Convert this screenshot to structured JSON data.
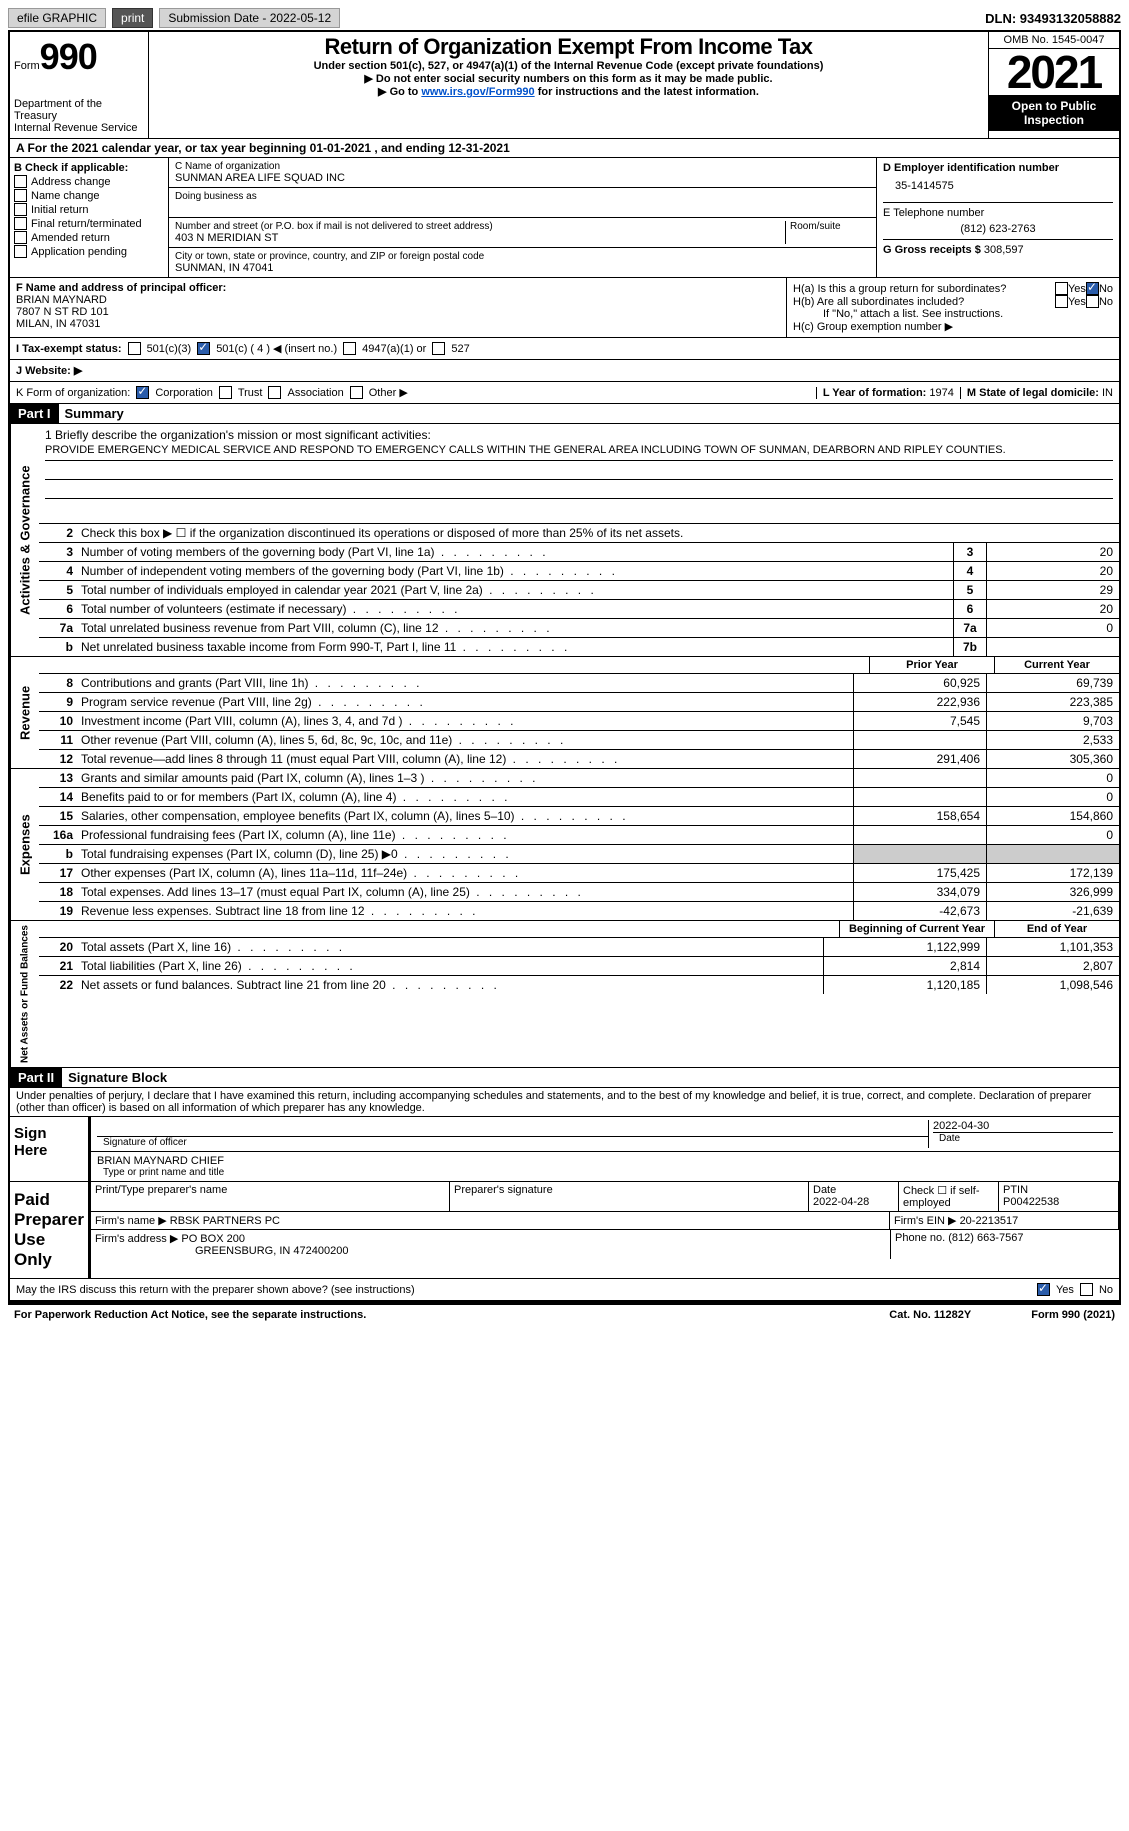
{
  "topbar": {
    "efile": "efile GRAPHIC",
    "print": "print",
    "submission": "Submission Date - 2022-05-12",
    "dln": "DLN: 93493132058882"
  },
  "header": {
    "form_label": "Form",
    "form_num": "990",
    "title": "Return of Organization Exempt From Income Tax",
    "subtitle": "Under section 501(c), 527, or 4947(a)(1) of the Internal Revenue Code (except private foundations)",
    "note1": "▶ Do not enter social security numbers on this form as it may be made public.",
    "note2_pre": "▶ Go to ",
    "note2_link": "www.irs.gov/Form990",
    "note2_post": " for instructions and the latest information.",
    "dept": "Department of the Treasury",
    "irs": "Internal Revenue Service",
    "omb": "OMB No. 1545-0047",
    "year": "2021",
    "open": "Open to Public Inspection"
  },
  "row_a": "A For the 2021 calendar year, or tax year beginning 01-01-2021    , and ending 12-31-2021",
  "col_b": {
    "header": "B Check if applicable:",
    "items": [
      "Address change",
      "Name change",
      "Initial return",
      "Final return/terminated",
      "Amended return",
      "Application pending"
    ]
  },
  "col_c": {
    "name_label": "C Name of organization",
    "name": "SUNMAN AREA LIFE SQUAD INC",
    "dba_label": "Doing business as",
    "addr_label": "Number and street (or P.O. box if mail is not delivered to street address)",
    "room_label": "Room/suite",
    "addr": "403 N MERIDIAN ST",
    "city_label": "City or town, state or province, country, and ZIP or foreign postal code",
    "city": "SUNMAN, IN   47041"
  },
  "col_d": {
    "ein_label": "D Employer identification number",
    "ein": "35-1414575",
    "phone_label": "E Telephone number",
    "phone": "(812) 623-2763",
    "gross_label": "G Gross receipts $",
    "gross": "308,597"
  },
  "officer": {
    "label": "F  Name and address of principal officer:",
    "name": "BRIAN MAYNARD",
    "addr1": "7807 N ST RD 101",
    "addr2": "MILAN, IN   47031"
  },
  "h": {
    "a": "H(a)  Is this a group return for subordinates?",
    "b": "H(b)  Are all subordinates included?",
    "b_note": "If \"No,\" attach a list. See instructions.",
    "c": "H(c)  Group exemption number ▶",
    "yes": "Yes",
    "no": "No"
  },
  "tax_status": {
    "label": "I   Tax-exempt status:",
    "c3": "501(c)(3)",
    "c": "501(c) ( 4 ) ◀ (insert no.)",
    "a1": "4947(a)(1) or",
    "527": "527"
  },
  "website": "J   Website: ▶",
  "form_org": {
    "label": "K Form of organization:",
    "corp": "Corporation",
    "trust": "Trust",
    "assoc": "Association",
    "other": "Other ▶"
  },
  "l": {
    "label": "L Year of formation:",
    "val": "1974"
  },
  "m": {
    "label": "M State of legal domicile:",
    "val": "IN"
  },
  "part1": {
    "hdr": "Part I",
    "title": "Summary",
    "mission_label": "1   Briefly describe the organization's mission or most significant activities:",
    "mission": "PROVIDE EMERGENCY MEDICAL SERVICE AND RESPOND TO EMERGENCY CALLS WITHIN THE GENERAL AREA INCLUDING TOWN OF SUNMAN, DEARBORN AND RIPLEY COUNTIES.",
    "line2": "Check this box ▶ ☐  if the organization discontinued its operations or disposed of more than 25% of its net assets.",
    "sides": {
      "ag": "Activities & Governance",
      "rev": "Revenue",
      "exp": "Expenses",
      "net": "Net Assets or Fund Balances"
    },
    "prior_hdr": "Prior Year",
    "current_hdr": "Current Year",
    "begin_hdr": "Beginning of Current Year",
    "end_hdr": "End of Year",
    "lines_gov": [
      {
        "n": "3",
        "t": "Number of voting members of the governing body (Part VI, line 1a)",
        "box": "3",
        "v": "20"
      },
      {
        "n": "4",
        "t": "Number of independent voting members of the governing body (Part VI, line 1b)",
        "box": "4",
        "v": "20"
      },
      {
        "n": "5",
        "t": "Total number of individuals employed in calendar year 2021 (Part V, line 2a)",
        "box": "5",
        "v": "29"
      },
      {
        "n": "6",
        "t": "Total number of volunteers (estimate if necessary)",
        "box": "6",
        "v": "20"
      },
      {
        "n": "7a",
        "t": "Total unrelated business revenue from Part VIII, column (C), line 12",
        "box": "7a",
        "v": "0"
      },
      {
        "n": "b",
        "t": "Net unrelated business taxable income from Form 990-T, Part I, line 11",
        "box": "7b",
        "v": ""
      }
    ],
    "lines_rev": [
      {
        "n": "8",
        "t": "Contributions and grants (Part VIII, line 1h)",
        "p": "60,925",
        "c": "69,739"
      },
      {
        "n": "9",
        "t": "Program service revenue (Part VIII, line 2g)",
        "p": "222,936",
        "c": "223,385"
      },
      {
        "n": "10",
        "t": "Investment income (Part VIII, column (A), lines 3, 4, and 7d )",
        "p": "7,545",
        "c": "9,703"
      },
      {
        "n": "11",
        "t": "Other revenue (Part VIII, column (A), lines 5, 6d, 8c, 9c, 10c, and 11e)",
        "p": "",
        "c": "2,533"
      },
      {
        "n": "12",
        "t": "Total revenue—add lines 8 through 11 (must equal Part VIII, column (A), line 12)",
        "p": "291,406",
        "c": "305,360"
      }
    ],
    "lines_exp": [
      {
        "n": "13",
        "t": "Grants and similar amounts paid (Part IX, column (A), lines 1–3 )",
        "p": "",
        "c": "0"
      },
      {
        "n": "14",
        "t": "Benefits paid to or for members (Part IX, column (A), line 4)",
        "p": "",
        "c": "0"
      },
      {
        "n": "15",
        "t": "Salaries, other compensation, employee benefits (Part IX, column (A), lines 5–10)",
        "p": "158,654",
        "c": "154,860"
      },
      {
        "n": "16a",
        "t": "Professional fundraising fees (Part IX, column (A), line 11e)",
        "p": "",
        "c": "0"
      },
      {
        "n": "b",
        "t": "Total fundraising expenses (Part IX, column (D), line 25) ▶0",
        "p": "shaded",
        "c": "shaded"
      },
      {
        "n": "17",
        "t": "Other expenses (Part IX, column (A), lines 11a–11d, 11f–24e)",
        "p": "175,425",
        "c": "172,139"
      },
      {
        "n": "18",
        "t": "Total expenses. Add lines 13–17 (must equal Part IX, column (A), line 25)",
        "p": "334,079",
        "c": "326,999"
      },
      {
        "n": "19",
        "t": "Revenue less expenses. Subtract line 18 from line 12",
        "p": "-42,673",
        "c": "-21,639"
      }
    ],
    "lines_net": [
      {
        "n": "20",
        "t": "Total assets (Part X, line 16)",
        "p": "1,122,999",
        "c": "1,101,353"
      },
      {
        "n": "21",
        "t": "Total liabilities (Part X, line 26)",
        "p": "2,814",
        "c": "2,807"
      },
      {
        "n": "22",
        "t": "Net assets or fund balances. Subtract line 21 from line 20",
        "p": "1,120,185",
        "c": "1,098,546"
      }
    ]
  },
  "part2": {
    "hdr": "Part II",
    "title": "Signature Block",
    "penalty": "Under penalties of perjury, I declare that I have examined this return, including accompanying schedules and statements, and to the best of my knowledge and belief, it is true, correct, and complete. Declaration of preparer (other than officer) is based on all information of which preparer has any knowledge."
  },
  "sign": {
    "here": "Sign Here",
    "sig_label": "Signature of officer",
    "date": "2022-04-30",
    "date_label": "Date",
    "name": "BRIAN MAYNARD  CHIEF",
    "name_label": "Type or print name and title"
  },
  "paid": {
    "here": "Paid Preparer Use Only",
    "print_label": "Print/Type preparer's name",
    "sig_label": "Preparer's signature",
    "date_label": "Date",
    "date": "2022-04-28",
    "check_label": "Check ☐ if self-employed",
    "ptin_label": "PTIN",
    "ptin": "P00422538",
    "firm_label": "Firm's name      ▶",
    "firm": "RBSK PARTNERS PC",
    "ein_label": "Firm's EIN ▶",
    "ein": "20-2213517",
    "addr_label": "Firm's address ▶",
    "addr1": "PO BOX 200",
    "addr2": "GREENSBURG, IN   472400200",
    "phone_label": "Phone no.",
    "phone": "(812) 663-7567"
  },
  "discuss": {
    "text": "May the IRS discuss this return with the preparer shown above? (see instructions)",
    "yes": "Yes",
    "no": "No"
  },
  "footer": {
    "left": "For Paperwork Reduction Act Notice, see the separate instructions.",
    "mid": "Cat. No. 11282Y",
    "right": "Form 990 (2021)"
  }
}
